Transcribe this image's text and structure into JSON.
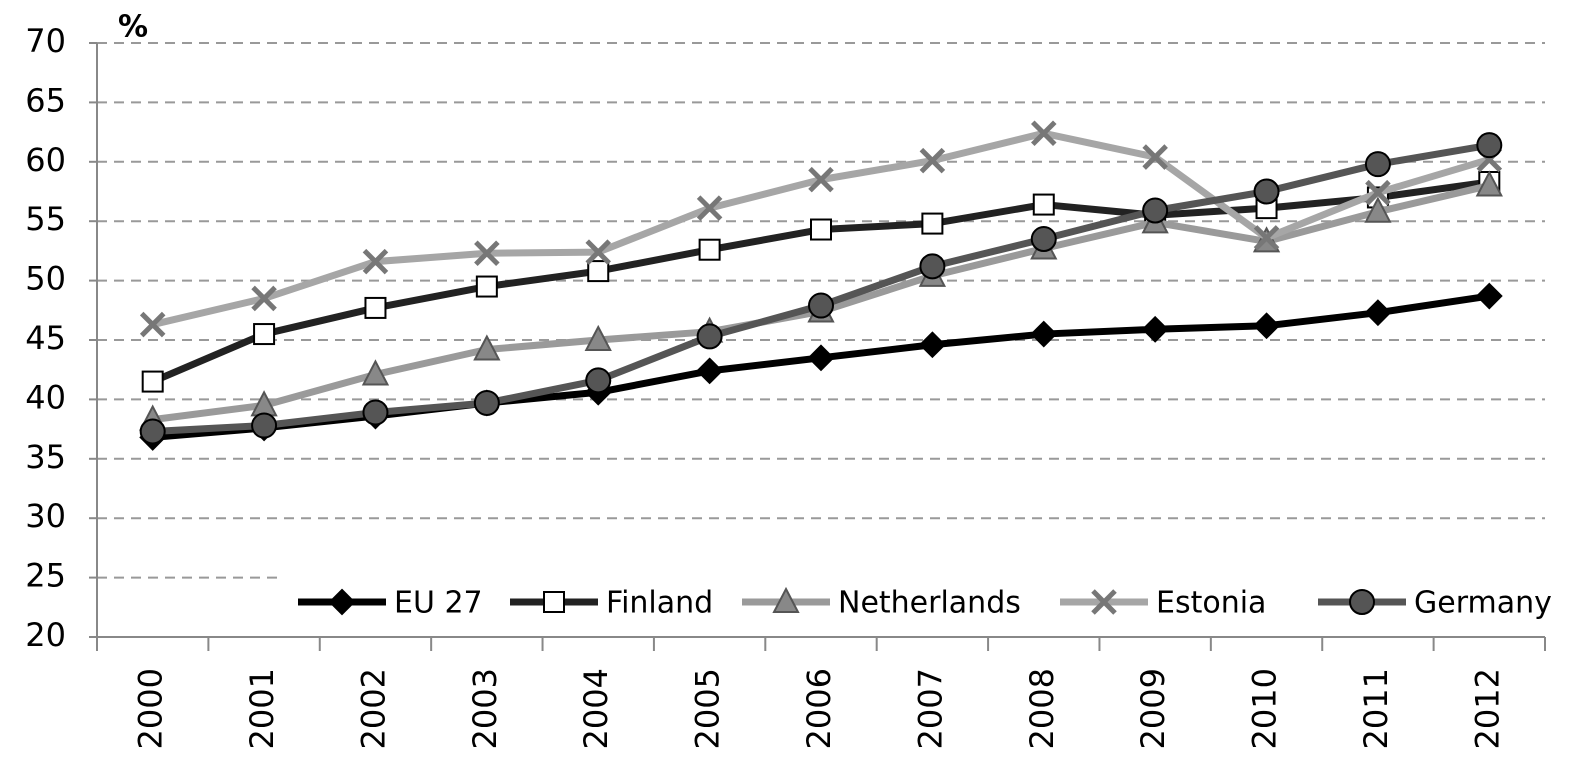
{
  "chart_data": {
    "type": "line",
    "y_label": "%",
    "categories": [
      "2000",
      "2001",
      "2002",
      "2003",
      "2004",
      "2005",
      "2006",
      "2007",
      "2008",
      "2009",
      "2010",
      "2011",
      "2012"
    ],
    "series": [
      {
        "name": "EU 27",
        "color": "#000000",
        "marker": "diamond",
        "values": [
          36.8,
          37.6,
          38.6,
          39.7,
          40.6,
          42.4,
          43.5,
          44.6,
          45.5,
          45.9,
          46.2,
          47.3,
          48.7
        ]
      },
      {
        "name": "Finland",
        "color": "#222222",
        "marker": "square",
        "values": [
          41.5,
          45.5,
          47.7,
          49.5,
          50.8,
          52.6,
          54.3,
          54.8,
          56.4,
          55.5,
          56.1,
          57.0,
          58.3
        ]
      },
      {
        "name": "Netherlands",
        "color": "#9a9a9a",
        "marker": "triangle",
        "values": [
          38.3,
          39.5,
          42.1,
          44.2,
          45.0,
          45.7,
          47.4,
          50.4,
          52.7,
          54.9,
          53.3,
          55.8,
          58.0
        ]
      },
      {
        "name": "Estonia",
        "color": "#a6a6a6",
        "marker": "x",
        "values": [
          46.3,
          48.5,
          51.6,
          52.3,
          52.4,
          56.1,
          58.5,
          60.1,
          62.4,
          60.4,
          53.6,
          57.4,
          60.2
        ]
      },
      {
        "name": "Germany",
        "color": "#555555",
        "marker": "circle",
        "values": [
          37.3,
          37.8,
          38.9,
          39.7,
          41.6,
          45.3,
          47.9,
          51.2,
          53.5,
          55.9,
          57.5,
          59.8,
          61.4
        ]
      }
    ],
    "ylim": [
      20,
      70
    ],
    "yticks": [
      20,
      25,
      30,
      35,
      40,
      45,
      50,
      55,
      60,
      65,
      70
    ],
    "grid": true,
    "legend": "bottom"
  }
}
